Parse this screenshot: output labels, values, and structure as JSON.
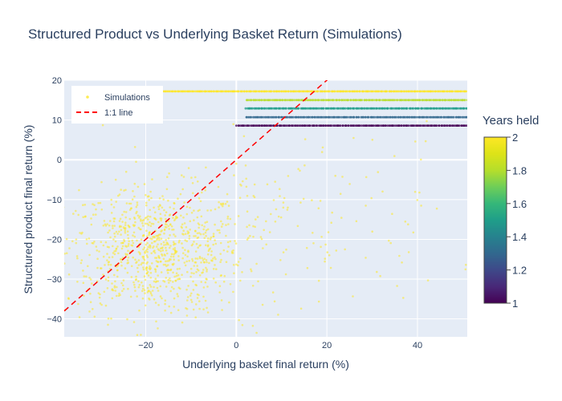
{
  "chart_data": {
    "type": "scatter",
    "title": "Structured Product vs Underlying Basket Return (Simulations)",
    "xlabel": "Underlying basket final return (%)",
    "ylabel": "Structured product final return (%)",
    "xlim": [
      -38,
      51
    ],
    "ylim": [
      -44.5,
      20
    ],
    "xticks": [
      -20,
      0,
      20,
      40
    ],
    "yticks": [
      -40,
      -30,
      -20,
      -10,
      0,
      10,
      20
    ],
    "grid": true,
    "legend_position": "top-left",
    "series": [
      {
        "name": "Simulations",
        "color_by": "Years held",
        "clusters": [
          {
            "x_mean": -18,
            "x_sd": 10,
            "y_mean": -23,
            "y_sd": 8,
            "years": 2,
            "count": 900
          },
          {
            "x_mean": 12,
            "x_sd": 18,
            "y_mean": -15,
            "y_sd": 12,
            "years": 2,
            "count": 160
          }
        ],
        "payoff_bands": [
          {
            "y": 17.2,
            "years": 2,
            "x_range": [
              -26,
              51
            ]
          },
          {
            "y": 15.0,
            "years": 1.75,
            "x_range": [
              2,
              51
            ]
          },
          {
            "y": 12.9,
            "years": 1.5,
            "x_range": [
              2,
              51
            ]
          },
          {
            "y": 10.7,
            "years": 1.25,
            "x_range": [
              2,
              51
            ]
          },
          {
            "y": 8.6,
            "years": 1.0,
            "x_range": [
              0,
              51
            ]
          }
        ]
      },
      {
        "name": "1:1 line",
        "type": "line",
        "style": "dashed",
        "color": "#ff0000",
        "x": [
          -38,
          51
        ],
        "y": [
          -38,
          51
        ]
      }
    ],
    "colorbar": {
      "title": "Years held",
      "range": [
        1,
        2
      ],
      "ticks": [
        1,
        1.2,
        1.4,
        1.6,
        1.8,
        2
      ],
      "tick_labels": [
        "1",
        "1.2",
        "1.4",
        "1.6",
        "1.8",
        "2"
      ],
      "colorscale": "Viridis"
    }
  },
  "colors": {
    "plot_bg": "#e5ecf6",
    "grid": "#ffffff",
    "text": "#2a3f5f",
    "line": "#ff0000"
  }
}
